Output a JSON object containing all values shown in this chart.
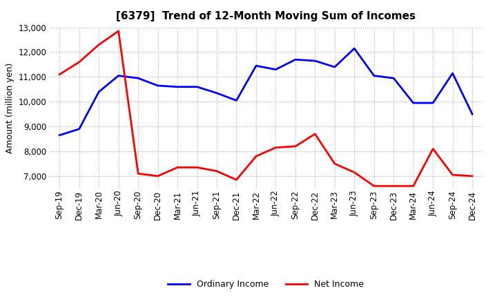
{
  "title": "[6379]  Trend of 12-Month Moving Sum of Incomes",
  "ylabel": "Amount (million yen)",
  "ylim": [
    6500,
    13000
  ],
  "yticks": [
    7000,
    8000,
    9000,
    10000,
    11000,
    12000,
    13000
  ],
  "background_color": "#ffffff",
  "grid_color": "#aaaaaa",
  "x_labels": [
    "Sep-19",
    "Dec-19",
    "Mar-20",
    "Jun-20",
    "Sep-20",
    "Dec-20",
    "Mar-21",
    "Jun-21",
    "Sep-21",
    "Dec-21",
    "Mar-22",
    "Jun-22",
    "Sep-22",
    "Dec-22",
    "Mar-23",
    "Jun-23",
    "Sep-23",
    "Dec-23",
    "Mar-24",
    "Jun-24",
    "Sep-24",
    "Dec-24"
  ],
  "ordinary_income": [
    8650,
    8900,
    10400,
    11050,
    10950,
    10650,
    10600,
    10600,
    10350,
    10050,
    11450,
    11300,
    11700,
    11650,
    11400,
    12150,
    11050,
    10950,
    9950,
    9950,
    11150,
    9500
  ],
  "net_income": [
    11100,
    11600,
    12300,
    12850,
    7100,
    7000,
    7350,
    7350,
    7200,
    6850,
    7800,
    8150,
    8200,
    8700,
    7500,
    7150,
    6600,
    6600,
    6600,
    8100,
    7050,
    7000
  ],
  "ordinary_color": "#0000ff",
  "net_color": "#ff0000",
  "line_width": 2.0,
  "title_fontsize": 11,
  "ylabel_fontsize": 9,
  "tick_fontsize": 8.5,
  "legend_fontsize": 9
}
